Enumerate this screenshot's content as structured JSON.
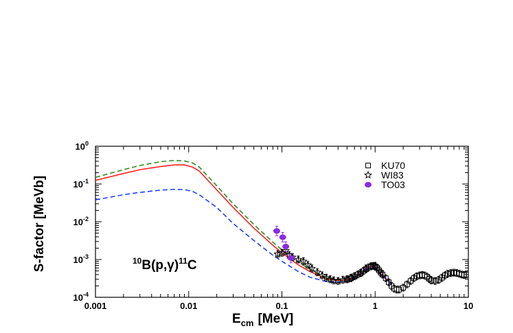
{
  "chart_data": {
    "type": "scatter",
    "title": "",
    "xlabel": "E",
    "xlabel_sub": "cm",
    "xlabel_unit": "[MeV]",
    "ylabel": "S-factor [MeVb]",
    "xscale": "log",
    "yscale": "log",
    "xlim": [
      0.001,
      10
    ],
    "ylim": [
      0.0001,
      1
    ],
    "xticks": [
      {
        "value": 0.001,
        "label": "0.001"
      },
      {
        "value": 0.01,
        "label": "0.01"
      },
      {
        "value": 0.1,
        "label": "0.1"
      },
      {
        "value": 1,
        "label": "1"
      },
      {
        "value": 10,
        "label": "10"
      }
    ],
    "yticks": [
      {
        "value": 1,
        "base": "10",
        "exp": "0"
      },
      {
        "value": 0.1,
        "base": "10",
        "exp": "-1"
      },
      {
        "value": 0.01,
        "base": "10",
        "exp": "-2"
      },
      {
        "value": 0.001,
        "base": "10",
        "exp": "-3"
      },
      {
        "value": 0.0001,
        "base": "10",
        "exp": "-4"
      }
    ],
    "annotation": {
      "sup1": "10",
      "el1": "B(p,",
      "greek": "γ",
      "close": ")",
      "sup2": "11",
      "el2": "C",
      "position": "lower-left"
    },
    "legend_position": "top-right",
    "grid": false,
    "lines": [
      {
        "color": "#2e8b22",
        "style": "dashed",
        "x": [
          0.001,
          0.002,
          0.003,
          0.005,
          0.007,
          0.009,
          0.011,
          0.013,
          0.02,
          0.03,
          0.05,
          0.08,
          0.1,
          0.15,
          0.2,
          0.3,
          0.4,
          0.5,
          0.6,
          0.7,
          0.8,
          0.9,
          1.0,
          1.1,
          1.2,
          1.4,
          1.5
        ],
        "y": [
          0.15,
          0.24,
          0.31,
          0.39,
          0.42,
          0.41,
          0.36,
          0.28,
          0.09,
          0.03,
          0.0085,
          0.0029,
          0.0018,
          0.00085,
          0.00055,
          0.00033,
          0.00029,
          0.0003,
          0.00035,
          0.00043,
          0.00058,
          0.00068,
          0.00065,
          0.0005,
          0.00038,
          0.00028,
          0.00024
        ]
      },
      {
        "color": "#ff2020",
        "style": "solid",
        "x": [
          0.001,
          0.002,
          0.003,
          0.005,
          0.007,
          0.009,
          0.011,
          0.013,
          0.02,
          0.03,
          0.05,
          0.08,
          0.1,
          0.15,
          0.2,
          0.3,
          0.4,
          0.5,
          0.6,
          0.7,
          0.8,
          0.9,
          1.0,
          1.1,
          1.2,
          1.4,
          1.5
        ],
        "y": [
          0.125,
          0.19,
          0.24,
          0.29,
          0.32,
          0.32,
          0.28,
          0.22,
          0.07,
          0.024,
          0.0068,
          0.0024,
          0.0015,
          0.00072,
          0.00048,
          0.00031,
          0.00028,
          0.00029,
          0.00034,
          0.00042,
          0.00056,
          0.00067,
          0.00064,
          0.00048,
          0.00037,
          0.00027,
          0.00023
        ]
      },
      {
        "color": "#1f3fff",
        "style": "dashed",
        "x": [
          0.001,
          0.002,
          0.003,
          0.005,
          0.007,
          0.009,
          0.011,
          0.013,
          0.02,
          0.03,
          0.05,
          0.08,
          0.1,
          0.15,
          0.2,
          0.3,
          0.4,
          0.5,
          0.6,
          0.7,
          0.8,
          0.9,
          1.0,
          1.1,
          1.2,
          1.4,
          1.5
        ],
        "y": [
          0.038,
          0.052,
          0.06,
          0.069,
          0.072,
          0.071,
          0.064,
          0.052,
          0.024,
          0.009,
          0.0032,
          0.0013,
          0.0009,
          0.00048,
          0.00034,
          0.00026,
          0.00025,
          0.00027,
          0.00032,
          0.0004,
          0.00054,
          0.00065,
          0.00062,
          0.00047,
          0.00036,
          0.00026,
          0.00022
        ]
      }
    ],
    "series": [
      {
        "name": "KU70",
        "marker": "open-square",
        "color": "#000000",
        "x": [
          0.5,
          0.55,
          0.6,
          0.65,
          0.7,
          0.75,
          0.8,
          0.85,
          0.9,
          0.95,
          1.0,
          1.05,
          1.1,
          1.15,
          1.2,
          1.3,
          1.4,
          1.5,
          1.6,
          1.7,
          1.8,
          2.0,
          2.2,
          2.4,
          2.6,
          2.8,
          3.0,
          3.2,
          3.4,
          3.6,
          3.8,
          4.0,
          4.4,
          4.8,
          5.2,
          5.6,
          6.0,
          6.5,
          7.0,
          7.5,
          8.0,
          8.5,
          9.0,
          9.5
        ],
        "y": [
          0.0003,
          0.00032,
          0.00036,
          0.0004,
          0.00044,
          0.0005,
          0.00056,
          0.00062,
          0.00066,
          0.00068,
          0.00066,
          0.0006,
          0.00052,
          0.00045,
          0.0004,
          0.00032,
          0.00025,
          0.0002,
          0.00017,
          0.00016,
          0.00016,
          0.00018,
          0.00022,
          0.00027,
          0.00032,
          0.00036,
          0.00038,
          0.00039,
          0.00038,
          0.00035,
          0.00031,
          0.00028,
          0.00027,
          0.00029,
          0.00033,
          0.00038,
          0.00042,
          0.00044,
          0.00045,
          0.00044,
          0.00042,
          0.0004,
          0.00039,
          0.0004
        ]
      },
      {
        "name": "WI83",
        "marker": "open-star",
        "color": "#000000",
        "x": [
          0.09,
          0.1,
          0.11,
          0.12,
          0.13,
          0.15,
          0.17,
          0.19,
          0.21,
          0.24,
          0.27,
          0.3,
          0.33,
          0.36,
          0.4,
          0.45,
          0.5,
          0.55,
          0.6,
          0.7,
          0.8,
          0.9,
          1.0
        ],
        "y": [
          0.0014,
          0.0015,
          0.0017,
          0.0013,
          0.00115,
          0.001,
          0.0009,
          0.00072,
          0.00058,
          0.00046,
          0.00038,
          0.00033,
          0.0003,
          0.00028,
          0.00027,
          0.00029,
          0.0003,
          0.00033,
          0.00036,
          0.00044,
          0.00058,
          0.00066,
          0.00068
        ]
      },
      {
        "name": "TO03",
        "marker": "filled-circle",
        "color": "#8a2be2",
        "x": [
          0.088,
          0.102,
          0.11,
          0.125
        ],
        "y": [
          0.0057,
          0.0039,
          0.0022,
          0.0011
        ]
      }
    ]
  }
}
